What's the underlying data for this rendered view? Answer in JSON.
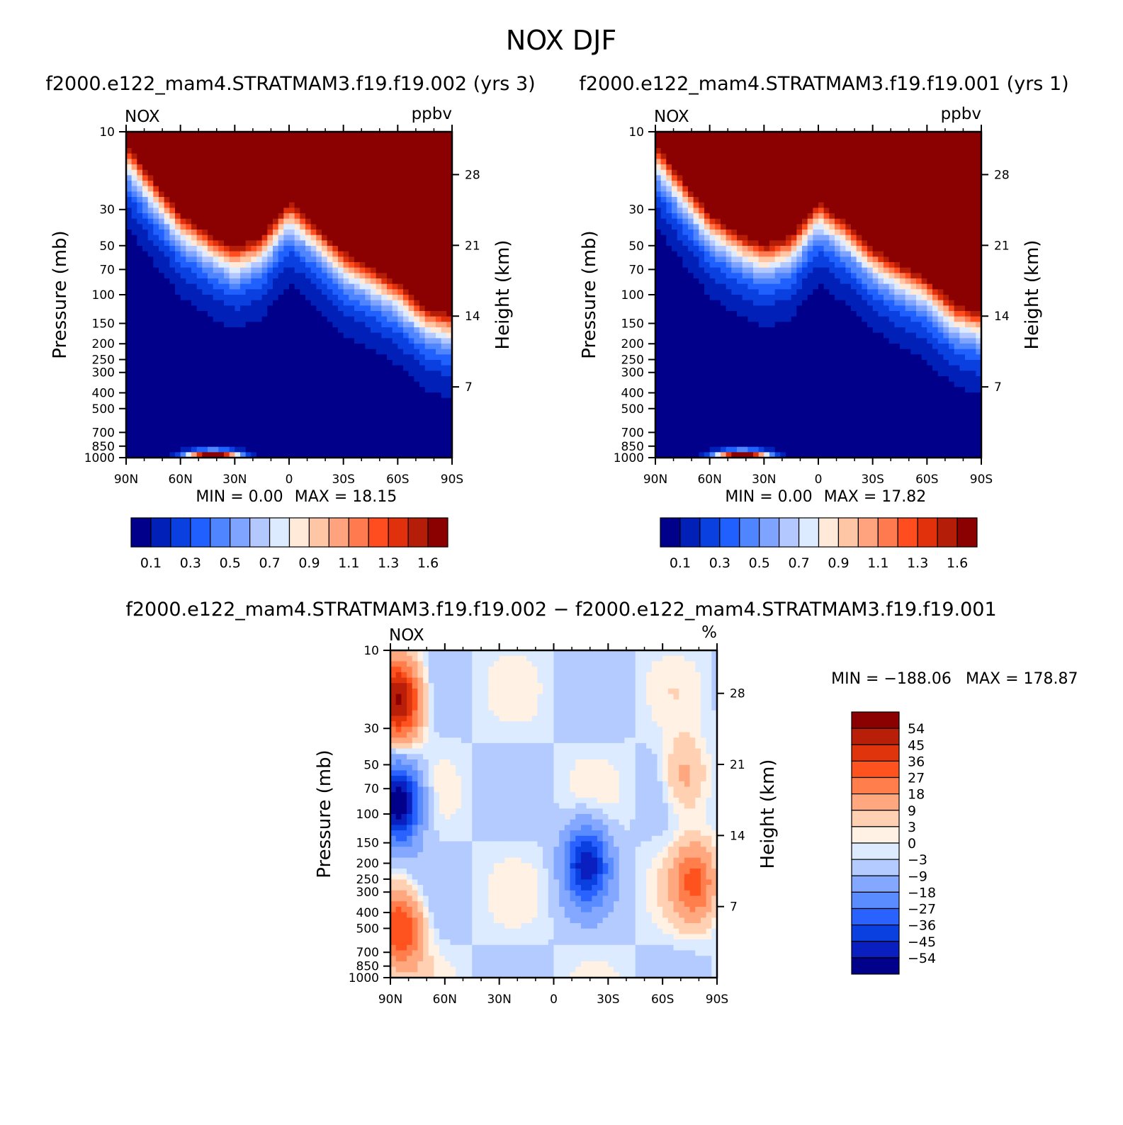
{
  "figure": {
    "title": "NOX DJF",
    "top_left_subtitle": "f2000.e122_mam4.STRATMAM3.f19.f19.002 (yrs 3)",
    "top_right_subtitle": "f2000.e122_mam4.STRATMAM3.f19.f19.001 (yrs 1)",
    "bottom_subtitle": "f2000.e122_mam4.STRATMAM3.f19.f19.002 − f2000.e122_mam4.STRATMAM3.f19.f19.001"
  },
  "colors": {
    "abs_palette": [
      "#00008b",
      "#0020b8",
      "#0a3fe0",
      "#2060ff",
      "#4f86ff",
      "#7ea4ff",
      "#b2c8ff",
      "#dcebff",
      "#ffe9d8",
      "#ffc6a6",
      "#ffa27e",
      "#ff7a4f",
      "#ff4d1f",
      "#e0300c",
      "#b41d08",
      "#8b0000"
    ],
    "diff_palette": [
      "#00008b",
      "#0a1fbf",
      "#0a3fe0",
      "#2a62ff",
      "#5a8cff",
      "#84a8ff",
      "#b4cbff",
      "#dcebff",
      "#fff1e3",
      "#ffd0b2",
      "#ffa880",
      "#ff7e4c",
      "#ff531f",
      "#e0340c",
      "#b81e08",
      "#8b0000"
    ]
  },
  "chart_data": [
    {
      "id": "model_002",
      "type": "contour",
      "variable": "NOX",
      "units": "ppbv",
      "x": {
        "ticks": [
          90,
          60,
          30,
          0,
          -30,
          -60,
          -90
        ],
        "tick_labels": [
          "90N",
          "60N",
          "30N",
          "0",
          "30S",
          "60S",
          "90S"
        ],
        "range": [
          90,
          -90
        ]
      },
      "y": {
        "label": "Pressure (mb)",
        "scale": "log",
        "range": [
          1000,
          10
        ],
        "ticks": [
          10,
          30,
          50,
          70,
          100,
          150,
          200,
          250,
          300,
          400,
          500,
          700,
          850,
          1000
        ],
        "tick_labels": [
          "10",
          "30",
          "50",
          "70",
          "100",
          "150",
          "200",
          "250",
          "300",
          "400",
          "500",
          "700",
          "850",
          "1000"
        ]
      },
      "y2": {
        "label": "Height (km)",
        "ticks": [
          28,
          21,
          14,
          7
        ],
        "tick_labels": [
          "28",
          "21",
          "14",
          "7"
        ]
      },
      "min_label": "MIN =    0.00",
      "max_label": "MAX =   18.15",
      "min": 0.0,
      "max": 18.15,
      "levels": [
        0.1,
        0.2,
        0.3,
        0.4,
        0.5,
        0.6,
        0.7,
        0.8,
        0.9,
        1.0,
        1.1,
        1.2,
        1.3,
        1.4,
        1.6
      ],
      "colorbar_labels": [
        "0.1",
        "0.3",
        "0.5",
        "0.7",
        "0.9",
        "1.1",
        "1.3",
        "1.6"
      ],
      "transition_profile_lat": [
        90,
        75,
        60,
        45,
        30,
        15,
        0,
        -15,
        -30,
        -45,
        -60,
        -75,
        -90
      ],
      "transition_profile_pressure": [
        12,
        20,
        32,
        42,
        52,
        44,
        27,
        38,
        55,
        68,
        85,
        120,
        135
      ]
    },
    {
      "id": "model_001",
      "type": "contour",
      "variable": "NOX",
      "units": "ppbv",
      "x": {
        "ticks": [
          90,
          60,
          30,
          0,
          -30,
          -60,
          -90
        ],
        "tick_labels": [
          "90N",
          "60N",
          "30N",
          "0",
          "30S",
          "60S",
          "90S"
        ],
        "range": [
          90,
          -90
        ]
      },
      "y": {
        "label": "Pressure (mb)",
        "scale": "log",
        "range": [
          1000,
          10
        ],
        "ticks": [
          10,
          30,
          50,
          70,
          100,
          150,
          200,
          250,
          300,
          400,
          500,
          700,
          850,
          1000
        ],
        "tick_labels": [
          "10",
          "30",
          "50",
          "70",
          "100",
          "150",
          "200",
          "250",
          "300",
          "400",
          "500",
          "700",
          "850",
          "1000"
        ]
      },
      "y2": {
        "label": "Height (km)",
        "ticks": [
          28,
          21,
          14,
          7
        ],
        "tick_labels": [
          "28",
          "21",
          "14",
          "7"
        ]
      },
      "min_label": "MIN =    0.00",
      "max_label": "MAX =   17.82",
      "min": 0.0,
      "max": 17.82,
      "levels": [
        0.1,
        0.2,
        0.3,
        0.4,
        0.5,
        0.6,
        0.7,
        0.8,
        0.9,
        1.0,
        1.1,
        1.2,
        1.3,
        1.4,
        1.6
      ],
      "colorbar_labels": [
        "0.1",
        "0.3",
        "0.5",
        "0.7",
        "0.9",
        "1.1",
        "1.3",
        "1.6"
      ],
      "transition_profile_lat": [
        90,
        75,
        60,
        45,
        30,
        15,
        0,
        -15,
        -30,
        -45,
        -60,
        -75,
        -90
      ],
      "transition_profile_pressure": [
        12,
        20,
        32,
        42,
        50,
        44,
        27,
        36,
        52,
        66,
        80,
        115,
        130
      ]
    },
    {
      "id": "difference",
      "type": "contour",
      "variable": "NOX",
      "units": "%",
      "x": {
        "ticks": [
          90,
          60,
          30,
          0,
          -30,
          -60,
          -90
        ],
        "tick_labels": [
          "90N",
          "60N",
          "30N",
          "0",
          "30S",
          "60S",
          "90S"
        ],
        "range": [
          90,
          -90
        ]
      },
      "y": {
        "label": "Pressure (mb)",
        "scale": "log",
        "range": [
          1000,
          10
        ],
        "ticks": [
          10,
          30,
          50,
          70,
          100,
          150,
          200,
          250,
          300,
          400,
          500,
          700,
          850,
          1000
        ],
        "tick_labels": [
          "10",
          "30",
          "50",
          "70",
          "100",
          "150",
          "200",
          "250",
          "300",
          "400",
          "500",
          "700",
          "850",
          "1000"
        ]
      },
      "y2": {
        "label": "Height (km)",
        "ticks": [
          28,
          21,
          14,
          7
        ],
        "tick_labels": [
          "28",
          "21",
          "14",
          "7"
        ]
      },
      "min_label": "MIN = −188.06",
      "max_label": "MAX =  178.87",
      "min": -188.06,
      "max": 178.87,
      "levels": [
        -54,
        -45,
        -36,
        -27,
        -18,
        -9,
        -3,
        0,
        3,
        9,
        18,
        27,
        36,
        45,
        54
      ],
      "colorbar_labels": [
        "54",
        "45",
        "36",
        "27",
        "18",
        "9",
        "3",
        "0",
        "−3",
        "−9",
        "−18",
        "−27",
        "−36",
        "−45",
        "−54"
      ],
      "features": [
        {
          "name": "polar positive anomaly",
          "lat": 85,
          "p": 20,
          "value": 60
        },
        {
          "name": "polar negative anomaly",
          "lat": 85,
          "p": 85,
          "value": -60
        },
        {
          "name": "tropical negative anomaly",
          "lat": -18,
          "p": 200,
          "value": -45
        },
        {
          "name": "southern positive anomaly",
          "lat": -72,
          "p": 60,
          "value": 18
        },
        {
          "name": "southern tropospheric positive",
          "lat": -78,
          "p": 260,
          "value": 30
        },
        {
          "name": "northern tropospheric positive",
          "lat": 84,
          "p": 500,
          "value": 40
        }
      ]
    }
  ]
}
